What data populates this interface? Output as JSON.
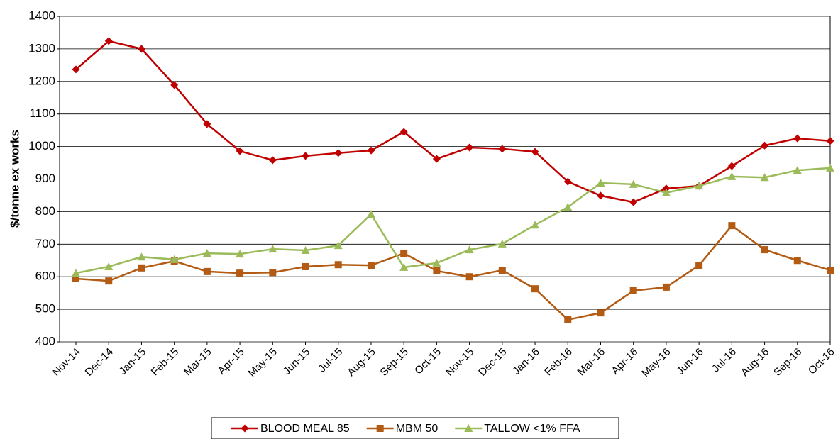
{
  "chart_data": {
    "type": "line",
    "y_label": "$/tonne ex works",
    "categories": [
      "Nov-14",
      "Dec-14",
      "Jan-15",
      "Feb-15",
      "Mar-15",
      "Apr-15",
      "May-15",
      "Jun-15",
      "Jul-15",
      "Aug-15",
      "Sep-15",
      "Oct-15",
      "Nov-15",
      "Dec-15",
      "Jan-16",
      "Feb-16",
      "Mar-16",
      "Apr-16",
      "May-16",
      "Jun-16",
      "Jul-16",
      "Aug-16",
      "Sep-16",
      "Oct-16"
    ],
    "series": [
      {
        "name": "BLOOD MEAL 85",
        "color": "#c00000",
        "marker": "diamond",
        "values": [
          1237,
          1324,
          1300,
          1189,
          1069,
          986,
          958,
          971,
          980,
          988,
          1045,
          962,
          997,
          993,
          984,
          892,
          849,
          829,
          871,
          879,
          940,
          1003,
          1025,
          1017
        ]
      },
      {
        "name": "MBM 50",
        "color": "#b35a13",
        "marker": "square",
        "values": [
          594,
          587,
          627,
          648,
          616,
          611,
          613,
          631,
          637,
          635,
          672,
          618,
          600,
          620,
          563,
          468,
          489,
          557,
          568,
          635,
          757,
          683,
          650,
          620
        ]
      },
      {
        "name": "TALLOW <1% FFA",
        "color": "#9bbb59",
        "marker": "triangle",
        "values": [
          611,
          631,
          661,
          653,
          672,
          670,
          685,
          681,
          696,
          792,
          629,
          642,
          683,
          701,
          759,
          814,
          888,
          884,
          858,
          879,
          908,
          905,
          927,
          934
        ]
      }
    ],
    "ylim": [
      400,
      1400
    ],
    "yticks": [
      400,
      500,
      600,
      700,
      800,
      900,
      1000,
      1100,
      1200,
      1300,
      1400
    ],
    "grid": true,
    "legend": "bottom"
  }
}
